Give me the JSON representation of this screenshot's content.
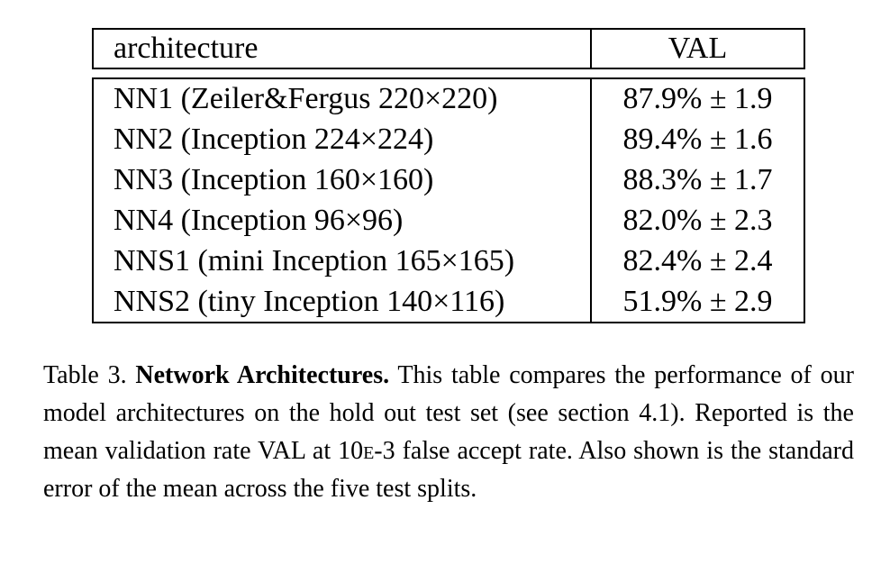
{
  "table": {
    "headers": {
      "architecture": "architecture",
      "val": "VAL"
    },
    "rows": [
      {
        "architecture": "NN1 (Zeiler&Fergus 220×220)",
        "val": "87.9% ± 1.9"
      },
      {
        "architecture": "NN2 (Inception 224×224)",
        "val": "89.4% ± 1.6"
      },
      {
        "architecture": "NN3 (Inception 160×160)",
        "val": "88.3% ± 1.7"
      },
      {
        "architecture": "NN4 (Inception 96×96)",
        "val": "82.0% ± 2.3"
      },
      {
        "architecture": "NNS1 (mini Inception 165×165)",
        "val": "82.4% ± 2.4"
      },
      {
        "architecture": "NNS2 (tiny Inception 140×116)",
        "val": "51.9% ± 2.9"
      }
    ]
  },
  "caption": {
    "label": "Table 3.",
    "title": "Network Architectures.",
    "text_part1": "This table compares the performance of our model architectures on the hold out test set (see section 4.1). Reported is the mean validation rate VAL at 10",
    "text_smallcaps": "e",
    "text_part2": "-3 false accept rate. Also shown is the standard error of the mean across the five test splits."
  }
}
